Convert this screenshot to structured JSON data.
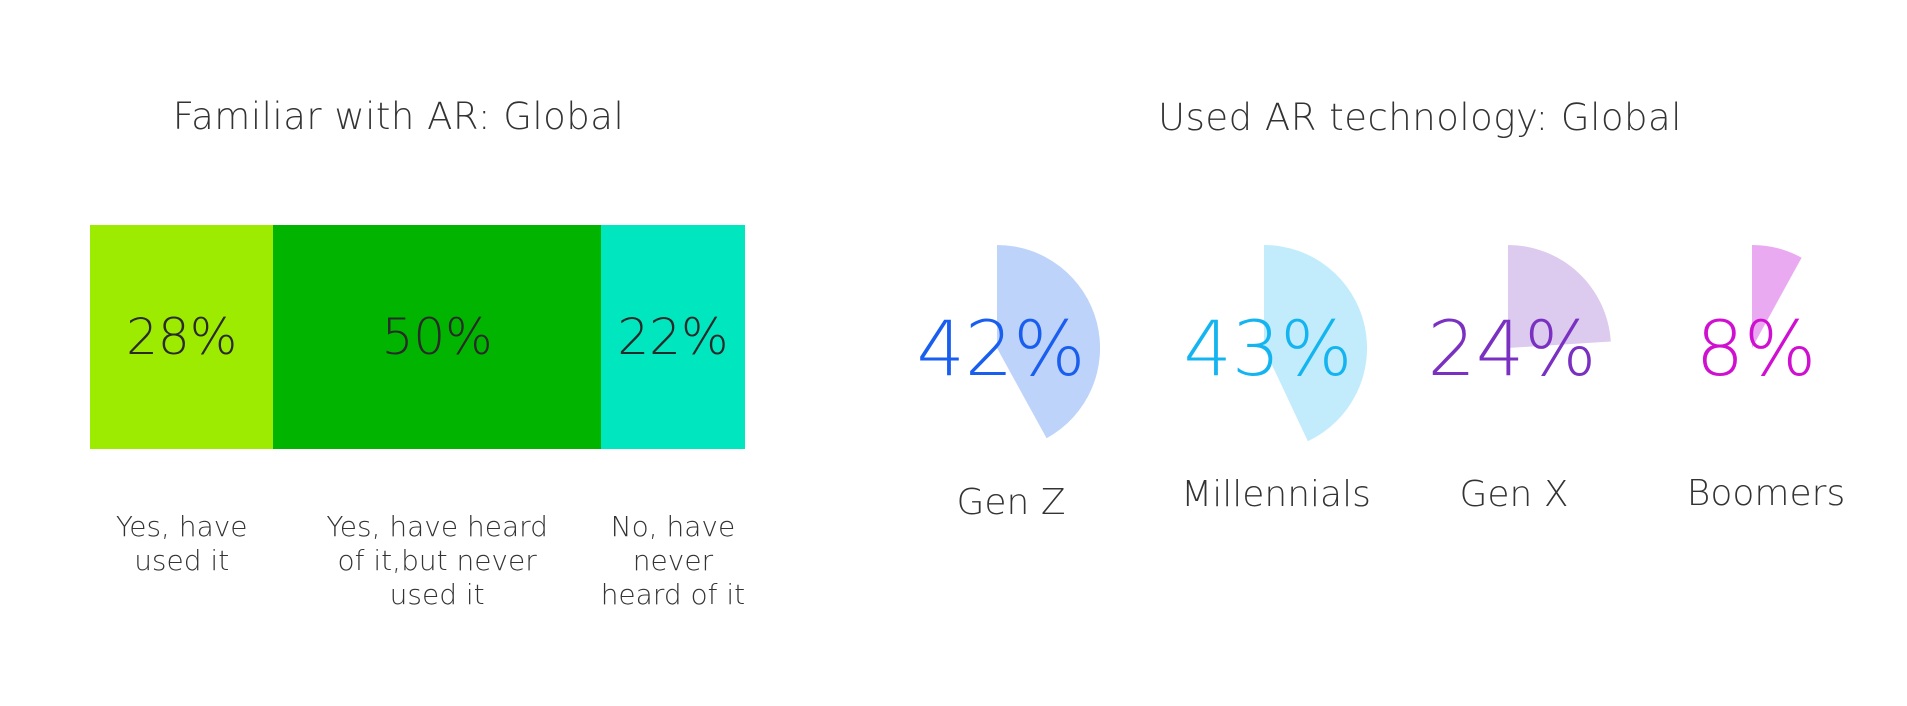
{
  "chart_data": [
    {
      "type": "bar",
      "subtype": "stacked-100",
      "title": "Familiar with AR: Global",
      "categories": [
        "Yes, have used it",
        "Yes, have heard of it,but never used it",
        "No, have never heard of it"
      ],
      "values": [
        28,
        50,
        22
      ],
      "value_labels": [
        "28%",
        "50%",
        "22%"
      ],
      "colors": [
        "#9deb00",
        "#00b400",
        "#00e6be"
      ]
    },
    {
      "type": "pie",
      "subtype": "fan-sectors",
      "title": "Used AR technology: Global",
      "categories": [
        "Gen Z",
        "Millennials",
        "Gen X",
        "Boomers"
      ],
      "values": [
        42,
        43,
        24,
        8
      ],
      "value_labels": [
        "42%",
        "43%",
        "24%",
        "8%"
      ],
      "text_colors": [
        "#1a5ef0",
        "#14b4f0",
        "#7a30c0",
        "#d010d0"
      ],
      "fill_colors": [
        "#bed3fa",
        "#c2ecfc",
        "#dccbee",
        "#eaaaf2"
      ]
    }
  ]
}
